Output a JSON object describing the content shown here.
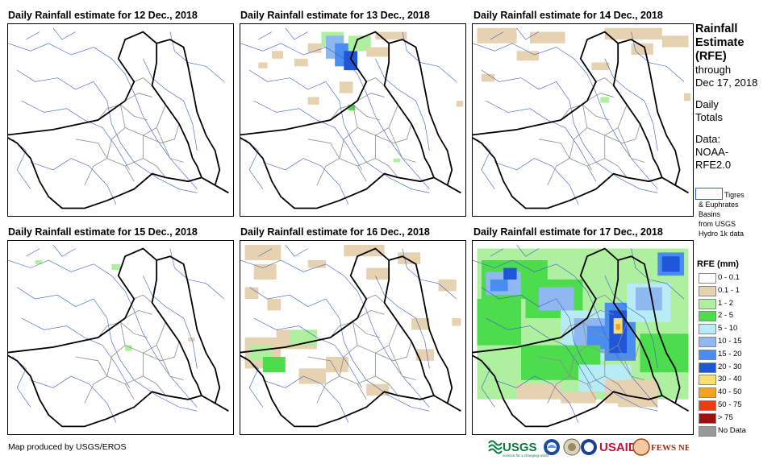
{
  "panels": [
    {
      "title": "Daily Rainfall estimate for 12 Dec., 2018"
    },
    {
      "title": "Daily Rainfall estimate for 13 Dec., 2018"
    },
    {
      "title": "Daily Rainfall estimate for 14 Dec., 2018"
    },
    {
      "title": "Daily Rainfall estimate for 15 Dec., 2018"
    },
    {
      "title": "Daily Rainfall estimate for 16 Dec., 2018"
    },
    {
      "title": "Daily Rainfall estimate for 17 Dec., 2018"
    }
  ],
  "sidebar": {
    "line1": "Rainfall",
    "line2": "Estimate",
    "line3": "(RFE)",
    "through": "through",
    "date": "Dec 17, 2018",
    "daily": "Daily",
    "totals": "Totals",
    "data_label": "Data:",
    "data_src1": "NOAA-",
    "data_src2": "RFE2.0"
  },
  "basin_legend": {
    "label": "Tigres",
    "text": "& Euphrates\nBasins\nfrom USGS\nHydro 1k data"
  },
  "rfe_legend": {
    "title": "RFE (mm)",
    "classes": [
      {
        "label": "0 - 0.1",
        "color": "#ffffff"
      },
      {
        "label": "0.1 - 1",
        "color": "#e6d2b0"
      },
      {
        "label": "1 - 2",
        "color": "#aef0a0"
      },
      {
        "label": "2 - 5",
        "color": "#4ddc4d"
      },
      {
        "label": "5 - 10",
        "color": "#b8ecf4"
      },
      {
        "label": "10 - 15",
        "color": "#8fb8f0"
      },
      {
        "label": "15 - 20",
        "color": "#4a8df0"
      },
      {
        "label": "20 - 30",
        "color": "#1f55d8"
      },
      {
        "label": "30 - 40",
        "color": "#f8e070"
      },
      {
        "label": "40 - 50",
        "color": "#f5a020"
      },
      {
        "label": "50 - 75",
        "color": "#ee3a10"
      },
      {
        "label": "> 75",
        "color": "#a01010"
      },
      {
        "label": "No Data",
        "color": "#999999"
      }
    ]
  },
  "footer": {
    "credit": "Map produced by USGS/EROS"
  },
  "logos": {
    "usgs": "USGS",
    "usgs_tag": "science for a changing world",
    "usaid": "USAID",
    "fewsnet": "FEWS NET"
  }
}
